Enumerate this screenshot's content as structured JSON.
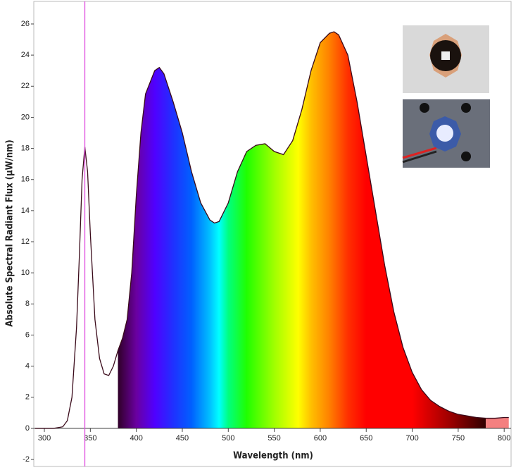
{
  "chart_data": {
    "type": "line",
    "xlabel": "Wavelength (nm)",
    "ylabel": "Absolute Spectral Radiant Flux (μW/nm)",
    "x": [
      290,
      310,
      320,
      325,
      330,
      335,
      338,
      341,
      344,
      347,
      350,
      355,
      360,
      365,
      370,
      375,
      380,
      385,
      390,
      395,
      400,
      405,
      410,
      420,
      425,
      430,
      440,
      450,
      460,
      470,
      480,
      485,
      490,
      500,
      510,
      520,
      530,
      540,
      550,
      560,
      570,
      580,
      590,
      600,
      610,
      615,
      620,
      630,
      640,
      650,
      660,
      670,
      680,
      690,
      700,
      710,
      720,
      730,
      740,
      750,
      760,
      770,
      780,
      790,
      800,
      805
    ],
    "values": [
      0,
      0,
      0.1,
      0.5,
      2,
      6.5,
      11,
      16,
      18.1,
      16.5,
      12.5,
      7,
      4.5,
      3.5,
      3.4,
      4,
      5,
      5.8,
      7,
      10,
      15,
      19,
      21.5,
      23,
      23.2,
      22.8,
      21,
      19,
      16.5,
      14.5,
      13.4,
      13.2,
      13.3,
      14.5,
      16.5,
      17.8,
      18.2,
      18.3,
      17.8,
      17.6,
      18.5,
      20.5,
      23,
      24.8,
      25.4,
      25.5,
      25.3,
      24,
      21,
      17.5,
      14,
      10.5,
      7.5,
      5.2,
      3.6,
      2.5,
      1.8,
      1.4,
      1.1,
      0.9,
      0.8,
      0.7,
      0.65,
      0.65,
      0.7,
      0.7
    ],
    "color": "#3a0a1a",
    "spectrum_fill": {
      "from": 380,
      "to": 780,
      "tail_color": "#f48080"
    },
    "cursor": {
      "x": 344,
      "color": "#e050e0"
    },
    "xlim": [
      288.5,
      807.5
    ],
    "ylim": [
      -2.45,
      27.45
    ],
    "xticks": [
      300,
      350,
      400,
      450,
      500,
      550,
      600,
      650,
      700,
      750,
      800
    ],
    "yticks": [
      -2,
      0,
      2,
      4,
      6,
      8,
      10,
      12,
      14,
      16,
      18,
      20,
      22,
      24,
      26
    ]
  }
}
